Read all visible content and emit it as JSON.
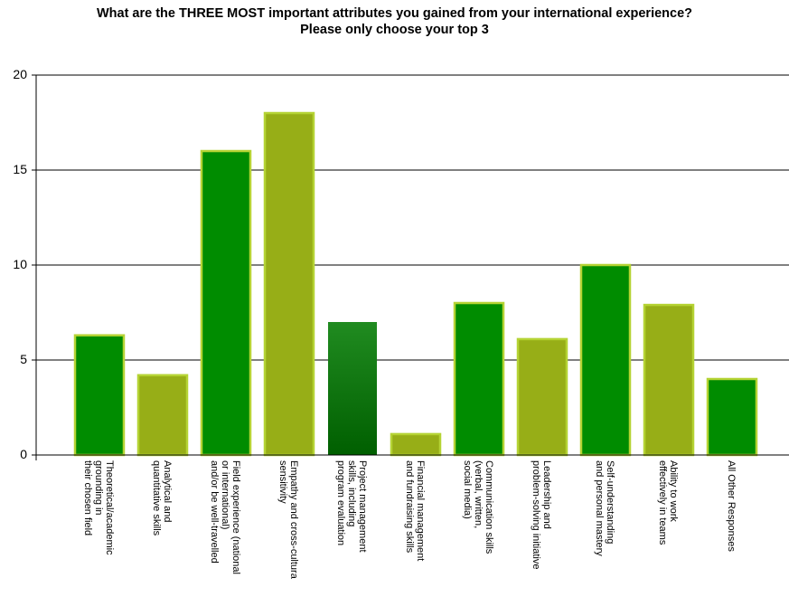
{
  "chart_data": {
    "type": "bar",
    "title": "What are the THREE MOST important attributes you gained from your international experience?",
    "subtitle": "Please only choose your top 3",
    "xlabel": "",
    "ylabel": "",
    "ylim": [
      0,
      20
    ],
    "yticks": [
      "0",
      "5",
      "10",
      "15",
      "20"
    ],
    "grid": true,
    "legend": "none",
    "categories": [
      [
        "Theoretical/academic",
        "grounding in",
        "their chosen field"
      ],
      [
        "Analytical and",
        "quantitative skills"
      ],
      [
        "Field experience (national",
        "or international)",
        "and/or be well-travelled"
      ],
      [
        "Empathy and cross-cultura",
        "sensitivity"
      ],
      [
        "Project management",
        "skills, including",
        "program evaluation"
      ],
      [
        "Financial management",
        "and fundraising skills"
      ],
      [
        "Communication skills",
        "(verbal, written,",
        "social media)"
      ],
      [
        "Leadership and",
        "problem-solving initiative"
      ],
      [
        "Self-understanding",
        "and personal mastery"
      ],
      [
        "Ability to work",
        "effectively in teams"
      ],
      [
        "All Other Responses"
      ]
    ],
    "values": [
      6.3,
      4.2,
      16,
      18,
      7,
      1.1,
      8,
      6.1,
      10,
      7.9,
      4
    ],
    "colors": {
      "green": "#008C00",
      "olive": "#97AE17",
      "border": "#B5D334",
      "dark_top": "#208B20",
      "dark_bottom": "#005F00"
    },
    "bar_styles": [
      "green",
      "olive",
      "green",
      "olive",
      "dark",
      "olive",
      "green",
      "olive",
      "green",
      "olive",
      "green"
    ]
  }
}
